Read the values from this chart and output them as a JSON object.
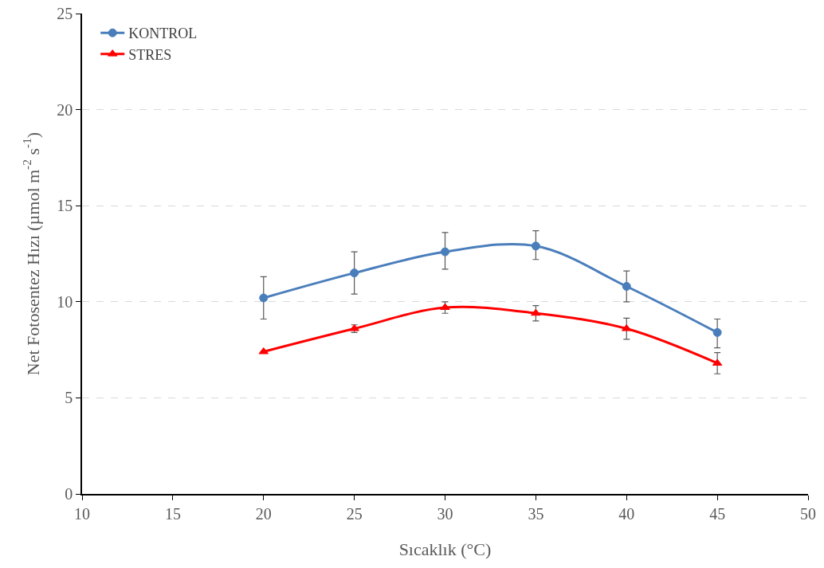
{
  "chart_data": {
    "type": "line",
    "xlabel": "Sıcaklık (°C)",
    "ylabel": "Net Fotosentez Hızı (µmol m$^{-2}$ s$^{-1}$)",
    "x": [
      20,
      25,
      30,
      35,
      40,
      45
    ],
    "series": [
      {
        "name": "KONTROL",
        "color": "#4a7ebb",
        "marker": "circle",
        "values": [
          10.2,
          11.5,
          12.6,
          12.9,
          10.8,
          8.4
        ],
        "errors": [
          [
            9.1,
            11.3
          ],
          [
            10.4,
            12.6
          ],
          [
            11.7,
            13.6
          ],
          [
            12.2,
            13.7
          ],
          [
            10.0,
            11.6
          ],
          [
            7.6,
            9.1
          ]
        ]
      },
      {
        "name": "STRES",
        "color": "#ff0000",
        "marker": "triangle",
        "values": [
          7.4,
          8.6,
          9.7,
          9.4,
          8.6,
          6.8
        ],
        "errors": [
          null,
          0.2,
          0.3,
          0.4,
          0.55,
          0.55
        ]
      }
    ],
    "xlim": [
      10,
      50
    ],
    "xticks": [
      10,
      15,
      20,
      25,
      30,
      35,
      40,
      45,
      50
    ],
    "ylim": [
      0,
      25
    ],
    "yticks": [
      0,
      5,
      10,
      15,
      20,
      25
    ],
    "grid": "y",
    "legend": "top left",
    "line_style": "solid"
  }
}
